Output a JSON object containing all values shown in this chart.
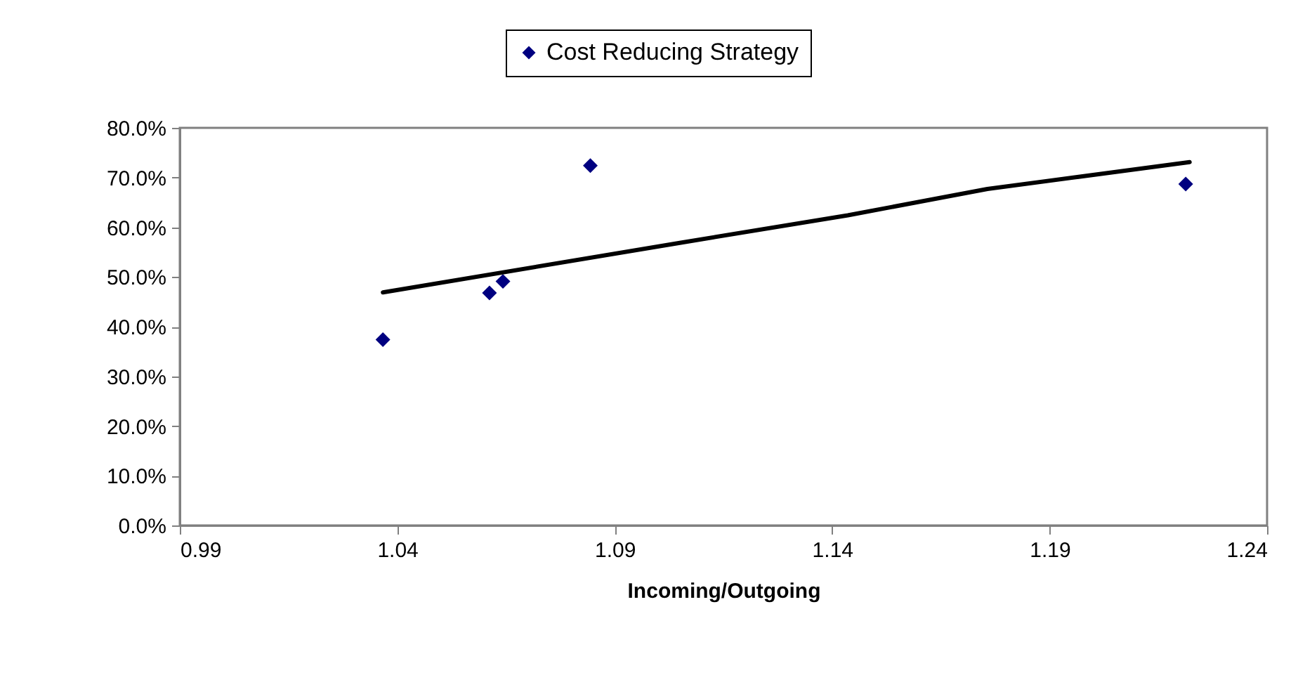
{
  "chart_data": {
    "type": "scatter",
    "xlabel": "Incoming/Outgoing",
    "xlim": [
      0.99,
      1.24
    ],
    "xticks": [
      0.99,
      1.04,
      1.09,
      1.14,
      1.19,
      1.24
    ],
    "ylim": [
      0,
      80
    ],
    "yticks": [
      {
        "value": 0,
        "label": "0.0%"
      },
      {
        "value": 10,
        "label": "10.0%"
      },
      {
        "value": 20,
        "label": "20.0%"
      },
      {
        "value": 30,
        "label": "30.0%"
      },
      {
        "value": 40,
        "label": "40.0%"
      },
      {
        "value": 50,
        "label": "50.0%"
      },
      {
        "value": 60,
        "label": "60.0%"
      },
      {
        "value": 70,
        "label": "70.0%"
      },
      {
        "value": 80,
        "label": "80.0%"
      }
    ],
    "series": [
      {
        "name": "Cost Reducing Strategy",
        "color": "#000080",
        "x": [
          1.0367,
          1.0612,
          1.0643,
          1.0844,
          1.2213
        ],
        "values": [
          37.4,
          46.8,
          49.1,
          72.4,
          68.7
        ],
        "marker": "diamond"
      },
      {
        "type": "line",
        "color": "#000000",
        "x": [
          1.0367,
          1.1052,
          1.1436,
          1.1757,
          1.2222
        ],
        "values": [
          46.9,
          56.9,
          62.4,
          67.7,
          73.1
        ],
        "line_style": "solid"
      }
    ],
    "legend": "top",
    "grid": false
  }
}
